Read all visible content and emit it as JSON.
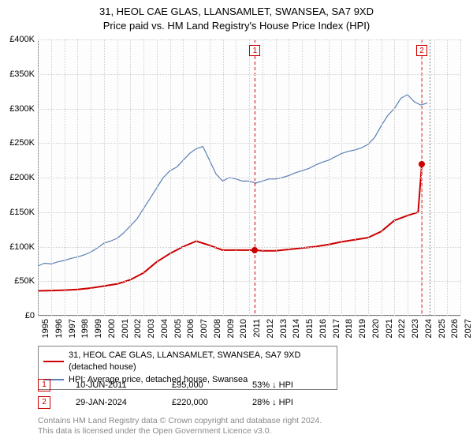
{
  "title": {
    "line1": "31, HEOL CAE GLAS, LLANSAMLET, SWANSEA, SA7 9XD",
    "line2": "Price paid vs. HM Land Registry's House Price Index (HPI)"
  },
  "chart": {
    "type": "line",
    "xlim": [
      1995,
      2027
    ],
    "ylim": [
      0,
      400000
    ],
    "ytick_step": 50000,
    "yticks": [
      "£0",
      "£50K",
      "£100K",
      "£150K",
      "£200K",
      "£250K",
      "£300K",
      "£350K",
      "£400K"
    ],
    "xticks": [
      1995,
      1996,
      1997,
      1998,
      1999,
      2000,
      2001,
      2002,
      2003,
      2004,
      2005,
      2006,
      2007,
      2008,
      2009,
      2010,
      2011,
      2012,
      2013,
      2014,
      2015,
      2016,
      2017,
      2018,
      2019,
      2020,
      2021,
      2022,
      2023,
      2024,
      2025,
      2026,
      2027
    ],
    "grid_color": "#d0d0d0",
    "background_color": "#fdfdfd",
    "series": {
      "property": {
        "label": "31, HEOL CAE GLAS, LLANSAMLET, SWANSEA, SA7 9XD (detached house)",
        "color": "#cc0000",
        "width": 2,
        "data": [
          [
            1995,
            36000
          ],
          [
            1996,
            36500
          ],
          [
            1997,
            37000
          ],
          [
            1998,
            38000
          ],
          [
            1999,
            40000
          ],
          [
            2000,
            43000
          ],
          [
            2001,
            46000
          ],
          [
            2002,
            52000
          ],
          [
            2003,
            62000
          ],
          [
            2004,
            78000
          ],
          [
            2005,
            90000
          ],
          [
            2006,
            100000
          ],
          [
            2007,
            108000
          ],
          [
            2008,
            102000
          ],
          [
            2009,
            95000
          ],
          [
            2010,
            95000
          ],
          [
            2011,
            95000
          ],
          [
            2011.44,
            95000
          ],
          [
            2012,
            94000
          ],
          [
            2013,
            94000
          ],
          [
            2014,
            96000
          ],
          [
            2015,
            98000
          ],
          [
            2016,
            100000
          ],
          [
            2017,
            103000
          ],
          [
            2018,
            107000
          ],
          [
            2019,
            110000
          ],
          [
            2020,
            113000
          ],
          [
            2021,
            122000
          ],
          [
            2022,
            138000
          ],
          [
            2023,
            145000
          ],
          [
            2023.8,
            150000
          ],
          [
            2024.08,
            220000
          ]
        ]
      },
      "hpi": {
        "label": "HPI: Average price, detached house, Swansea",
        "color": "#5b7fb4",
        "width": 1.2,
        "data": [
          [
            1995,
            72000
          ],
          [
            1995.5,
            76000
          ],
          [
            1996,
            75000
          ],
          [
            1996.5,
            78000
          ],
          [
            1997,
            80000
          ],
          [
            1997.5,
            83000
          ],
          [
            1998,
            85000
          ],
          [
            1998.5,
            88000
          ],
          [
            1999,
            92000
          ],
          [
            1999.5,
            98000
          ],
          [
            2000,
            105000
          ],
          [
            2000.5,
            108000
          ],
          [
            2001,
            112000
          ],
          [
            2001.5,
            120000
          ],
          [
            2002,
            130000
          ],
          [
            2002.5,
            140000
          ],
          [
            2003,
            155000
          ],
          [
            2003.5,
            170000
          ],
          [
            2004,
            185000
          ],
          [
            2004.5,
            200000
          ],
          [
            2005,
            210000
          ],
          [
            2005.5,
            215000
          ],
          [
            2006,
            225000
          ],
          [
            2006.5,
            235000
          ],
          [
            2007,
            242000
          ],
          [
            2007.5,
            245000
          ],
          [
            2008,
            225000
          ],
          [
            2008.5,
            205000
          ],
          [
            2009,
            195000
          ],
          [
            2009.5,
            200000
          ],
          [
            2010,
            198000
          ],
          [
            2010.5,
            195000
          ],
          [
            2011,
            195000
          ],
          [
            2011.5,
            192000
          ],
          [
            2012,
            195000
          ],
          [
            2012.5,
            198000
          ],
          [
            2013,
            198000
          ],
          [
            2013.5,
            200000
          ],
          [
            2014,
            203000
          ],
          [
            2014.5,
            207000
          ],
          [
            2015,
            210000
          ],
          [
            2015.5,
            213000
          ],
          [
            2016,
            218000
          ],
          [
            2016.5,
            222000
          ],
          [
            2017,
            225000
          ],
          [
            2017.5,
            230000
          ],
          [
            2018,
            235000
          ],
          [
            2018.5,
            238000
          ],
          [
            2019,
            240000
          ],
          [
            2019.5,
            243000
          ],
          [
            2020,
            248000
          ],
          [
            2020.5,
            258000
          ],
          [
            2021,
            275000
          ],
          [
            2021.5,
            290000
          ],
          [
            2022,
            300000
          ],
          [
            2022.5,
            315000
          ],
          [
            2023,
            320000
          ],
          [
            2023.5,
            310000
          ],
          [
            2024,
            305000
          ],
          [
            2024.5,
            308000
          ]
        ]
      }
    },
    "sale_markers": [
      {
        "n": "1",
        "x": 2011.44,
        "y": 95000,
        "color": "#cc0000"
      },
      {
        "n": "2",
        "x": 2024.08,
        "y": 220000,
        "color": "#cc0000"
      }
    ],
    "vlines": [
      {
        "x": 2011.44,
        "color": "#cc0000",
        "dash": "4 3"
      },
      {
        "x": 2024.08,
        "color": "#cc0000",
        "dash": "4 3"
      },
      {
        "x": 2024.7,
        "color": "#808080",
        "dash": "2 2"
      }
    ]
  },
  "sales": [
    {
      "n": "1",
      "date": "10-JUN-2011",
      "price": "£95,000",
      "diff": "53% ↓ HPI",
      "color": "#cc0000"
    },
    {
      "n": "2",
      "date": "29-JAN-2024",
      "price": "£220,000",
      "diff": "28% ↓ HPI",
      "color": "#cc0000"
    }
  ],
  "footer": {
    "line1": "Contains HM Land Registry data © Crown copyright and database right 2024.",
    "line2": "This data is licensed under the Open Government Licence v3.0."
  }
}
